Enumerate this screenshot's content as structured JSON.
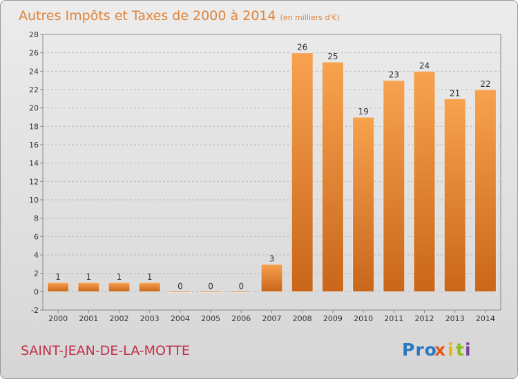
{
  "title": "Autres Impôts et Taxes de 2000 à 2014",
  "subtitle": "(en milliers d'€)",
  "location": "SAINT-JEAN-DE-LA-MOTTE",
  "logo_text": "Proxiti",
  "colors": {
    "bar_light": "#f7a24f",
    "bar_dark": "#c9661a",
    "title": "#e0843a",
    "location": "#c0304a"
  },
  "chart_data": {
    "type": "bar",
    "title": "Autres Impôts et Taxes de 2000 à 2014",
    "subtitle": "(en milliers d'€)",
    "xlabel": "",
    "ylabel": "",
    "categories": [
      "2000",
      "2001",
      "2002",
      "2003",
      "2004",
      "2005",
      "2006",
      "2007",
      "2008",
      "2009",
      "2010",
      "2011",
      "2012",
      "2013",
      "2014"
    ],
    "values": [
      1,
      1,
      1,
      1,
      0,
      0,
      0,
      3,
      26,
      25,
      19,
      23,
      24,
      21,
      22
    ],
    "value_labels": [
      "1",
      "1",
      "1",
      "1",
      "0",
      "0",
      "0",
      "3",
      "26",
      "25",
      "19",
      "23",
      "24",
      "21",
      "22"
    ],
    "ylim": [
      -2,
      28
    ],
    "yticks": [
      -2,
      0,
      2,
      4,
      6,
      8,
      10,
      12,
      14,
      16,
      18,
      20,
      22,
      24,
      26,
      28
    ],
    "ytick_labels": [
      "-2",
      "0",
      "2",
      "4",
      "6",
      "8",
      "10",
      "12",
      "14",
      "16",
      "18",
      "20",
      "22",
      "24",
      "26",
      "28"
    ],
    "grid": true,
    "legend": "none"
  }
}
